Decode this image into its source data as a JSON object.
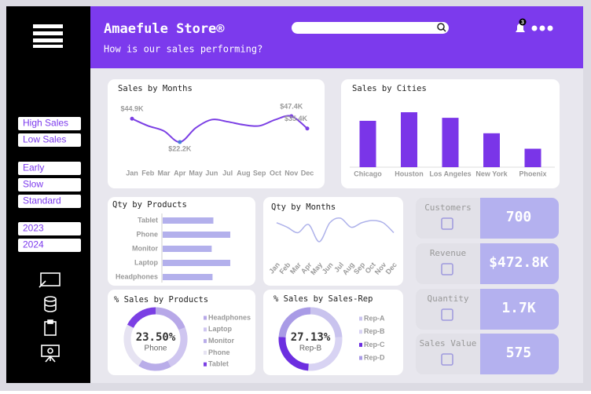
{
  "header": {
    "title": "Amaefule Store®",
    "subtitle": "How is our sales performing?",
    "notifications": "3"
  },
  "sidebar": {
    "filter_groups": [
      [
        "High Sales",
        "Low Sales"
      ],
      [
        "Early",
        "Slow",
        "Standard"
      ],
      [
        "2023",
        "2024"
      ]
    ]
  },
  "sales_by_months": {
    "type": "line",
    "title": "Sales by Months",
    "categories": [
      "Jan",
      "Feb",
      "Mar",
      "Apr",
      "May",
      "Jun",
      "Jul",
      "Aug",
      "Sep",
      "Oct",
      "Nov",
      "Dec"
    ],
    "values": [
      44.9,
      38,
      33,
      22.2,
      36,
      44,
      42,
      39,
      38,
      44,
      47.4,
      35.4
    ],
    "value_labels": [
      "$44.9K",
      null,
      null,
      "$22.2K",
      null,
      null,
      null,
      null,
      null,
      null,
      "$47.4K",
      "$35.4K"
    ],
    "color": "#7b3fe4"
  },
  "sales_by_cities": {
    "type": "bar",
    "title": "Sales by Cities",
    "categories": [
      "Chicago",
      "Houston",
      "Los Angeles",
      "New York",
      "Phoenix"
    ],
    "values": [
      108,
      128,
      115,
      79,
      43
    ],
    "color": "#7a35e8"
  },
  "qty_by_products": {
    "type": "hbar",
    "title": "Qty by Products",
    "categories": [
      "Tablet",
      "Phone",
      "Monitor",
      "Laptop",
      "Headphones"
    ],
    "values": [
      300,
      400,
      290,
      400,
      295
    ],
    "color": "#b3b0ec"
  },
  "qty_by_months": {
    "type": "line",
    "title": "Qty by Months",
    "categories": [
      "Jan",
      "Feb",
      "Mar",
      "Apr",
      "May",
      "Jun",
      "Jul",
      "Aug",
      "Sep",
      "Oct",
      "Nov",
      "Dec"
    ],
    "values": [
      150,
      140,
      128,
      146,
      108,
      150,
      160,
      140,
      150,
      155,
      150,
      128
    ],
    "color": "#aeb2ea"
  },
  "pct_sales_by_products": {
    "type": "donut",
    "title": "% Sales by Products",
    "categories": [
      "Headphones",
      "Laptop",
      "Monitor",
      "Phone",
      "Tablet"
    ],
    "values": [
      19,
      23,
      17,
      23.5,
      17.5
    ],
    "value_labels": [
      null,
      null,
      null,
      "23.50%",
      null
    ],
    "colors": [
      "#b7a8e8",
      "#cfc6f0",
      "#b9ade9",
      "#e6e3f2",
      "#7b3fe4"
    ]
  },
  "pct_sales_by_rep": {
    "type": "donut",
    "title": "% Sales by Sales-Rep",
    "categories": [
      "Rep-A",
      "Rep-B",
      "Rep-C",
      "Rep-D"
    ],
    "values": [
      24,
      27.13,
      25,
      23.87
    ],
    "value_labels": [
      null,
      "27.13%",
      null,
      null
    ],
    "colors": [
      "#c9c3ee",
      "#d8d3f3",
      "#6c2ee0",
      "#a99be6"
    ]
  },
  "kpis": [
    {
      "label": "Customers",
      "value": "700"
    },
    {
      "label": "Revenue",
      "value": "$472.8K"
    },
    {
      "label": "Quantity",
      "value": "1.7K"
    },
    {
      "label": "Sales Value",
      "value": "575"
    }
  ]
}
